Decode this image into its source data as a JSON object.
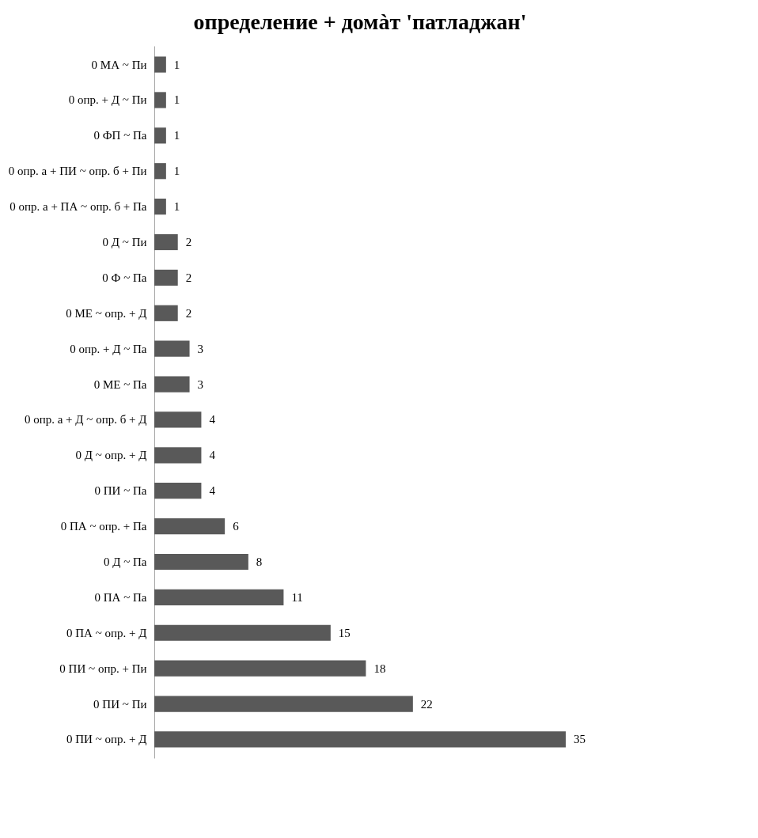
{
  "chart_data": {
    "type": "bar",
    "orientation": "horizontal",
    "title": "определение + домàт 'патладжан'",
    "categories": [
      "0 МА ~ Пи",
      "0 опр. + Д ~ Пи",
      "0 ФП ~ Па",
      "0 опр. а + ПИ ~ опр. б + Пи",
      "0 опр. а + ПА ~ опр. б + Па",
      "0 Д ~ Пи",
      "0 Ф ~ Па",
      "0 МЕ ~ опр. + Д",
      "0 опр. + Д ~ Па",
      "0 МЕ ~ Па",
      "0 опр. а + Д ~ опр. б + Д",
      "0 Д ~ опр. + Д",
      "0 ПИ ~ Па",
      "0 ПА ~ опр. + Па",
      "0 Д ~ Па",
      "0 ПА ~ Па",
      "0 ПА ~ опр. + Д",
      "0 ПИ ~ опр. + Пи",
      "0 ПИ ~ Пи",
      "0 ПИ ~ опр. + Д"
    ],
    "values": [
      1,
      1,
      1,
      1,
      1,
      2,
      2,
      2,
      3,
      3,
      4,
      4,
      4,
      6,
      8,
      11,
      15,
      18,
      22,
      35
    ],
    "color": "#595959",
    "data_labels": true,
    "tick_labels": "y",
    "grid": false
  }
}
